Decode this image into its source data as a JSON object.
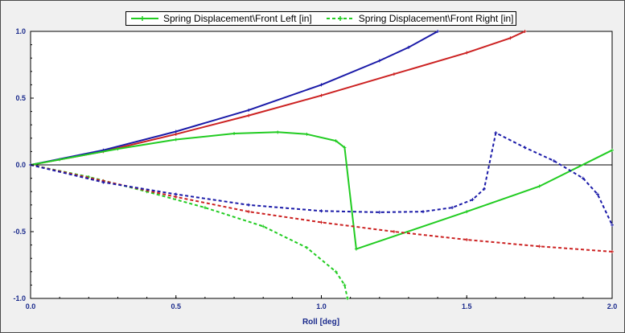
{
  "chart_data": {
    "type": "line",
    "xlabel": "Roll [deg]",
    "ylabel": "",
    "xlim": [
      0.0,
      2.0
    ],
    "ylim": [
      -1.0,
      1.0
    ],
    "x_ticks": [
      "0.0",
      "0.5",
      "1.0",
      "1.5",
      "2.0"
    ],
    "y_ticks": [
      "1.0",
      "0.5",
      "0.0",
      "-0.5",
      "-1.0"
    ],
    "grid": false,
    "legend_position": "top",
    "legend": [
      {
        "label": "Spring Displacement\\Front Left [in]",
        "color": "#22cc22",
        "style": "solid"
      },
      {
        "label": "Spring Displacement\\Front Right [in]",
        "color": "#22cc22",
        "style": "dashed"
      }
    ],
    "series": [
      {
        "color": "#cc2222",
        "style": "solid",
        "points": [
          [
            0,
            0
          ],
          [
            0.25,
            0.1
          ],
          [
            0.5,
            0.23
          ],
          [
            0.75,
            0.37
          ],
          [
            1.0,
            0.52
          ],
          [
            1.25,
            0.68
          ],
          [
            1.5,
            0.84
          ],
          [
            1.65,
            0.95
          ],
          [
            1.7,
            1.0
          ]
        ]
      },
      {
        "color": "#1a1aa8",
        "style": "solid",
        "points": [
          [
            0,
            0
          ],
          [
            0.25,
            0.11
          ],
          [
            0.5,
            0.25
          ],
          [
            0.75,
            0.41
          ],
          [
            1.0,
            0.6
          ],
          [
            1.2,
            0.78
          ],
          [
            1.3,
            0.88
          ],
          [
            1.4,
            1.0
          ]
        ]
      },
      {
        "color": "#22cc22",
        "style": "solid",
        "points": [
          [
            0,
            0
          ],
          [
            0.1,
            0.04
          ],
          [
            0.3,
            0.12
          ],
          [
            0.5,
            0.19
          ],
          [
            0.7,
            0.235
          ],
          [
            0.85,
            0.245
          ],
          [
            0.95,
            0.23
          ],
          [
            1.05,
            0.18
          ],
          [
            1.08,
            0.13
          ],
          [
            1.12,
            -0.63
          ],
          [
            1.5,
            -0.35
          ],
          [
            1.75,
            -0.16
          ],
          [
            2.0,
            0.11
          ]
        ]
      },
      {
        "color": "#22cc22",
        "style": "dashed",
        "points": [
          [
            0,
            0
          ],
          [
            0.2,
            -0.09
          ],
          [
            0.4,
            -0.2
          ],
          [
            0.6,
            -0.32
          ],
          [
            0.8,
            -0.46
          ],
          [
            0.95,
            -0.62
          ],
          [
            1.05,
            -0.8
          ],
          [
            1.08,
            -0.9
          ],
          [
            1.09,
            -1.0
          ]
        ]
      },
      {
        "color": "#cc2222",
        "style": "dashed",
        "points": [
          [
            0,
            0
          ],
          [
            0.25,
            -0.12
          ],
          [
            0.5,
            -0.24
          ],
          [
            0.75,
            -0.35
          ],
          [
            1.0,
            -0.43
          ],
          [
            1.25,
            -0.5
          ],
          [
            1.5,
            -0.56
          ],
          [
            1.75,
            -0.61
          ],
          [
            2.0,
            -0.65
          ]
        ]
      },
      {
        "color": "#1a1aa8",
        "style": "dashed",
        "points": [
          [
            0,
            0
          ],
          [
            0.25,
            -0.13
          ],
          [
            0.5,
            -0.22
          ],
          [
            0.75,
            -0.3
          ],
          [
            1.0,
            -0.345
          ],
          [
            1.2,
            -0.355
          ],
          [
            1.35,
            -0.35
          ],
          [
            1.45,
            -0.32
          ],
          [
            1.52,
            -0.26
          ],
          [
            1.56,
            -0.18
          ],
          [
            1.6,
            0.24
          ],
          [
            1.7,
            0.13
          ],
          [
            1.8,
            0.03
          ],
          [
            1.9,
            -0.1
          ],
          [
            1.95,
            -0.22
          ],
          [
            2.0,
            -0.45
          ]
        ]
      }
    ]
  }
}
